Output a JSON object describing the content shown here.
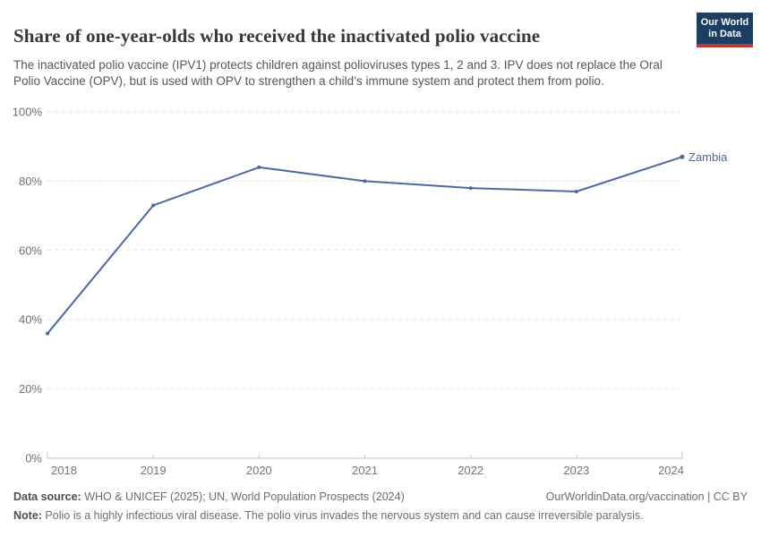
{
  "brand": {
    "logo_line1": "Our World",
    "logo_line2": "in Data",
    "bg_color": "#1d3d63",
    "accent_color": "#b93a32"
  },
  "header": {
    "title": "Share of one-year-olds who received the inactivated polio vaccine",
    "subtitle": "The inactivated polio vaccine (IPV1) protects children against polioviruses types 1, 2 and 3. IPV does not replace the Oral Polio Vaccine (OPV), but is used with OPV to strengthen a child’s immune system and protect them from polio."
  },
  "chart_data": {
    "type": "line",
    "title": "Share of one-year-olds who received the inactivated polio vaccine",
    "x": [
      2018,
      2019,
      2020,
      2021,
      2022,
      2023,
      2024
    ],
    "series": [
      {
        "name": "Zambia",
        "color": "#4C6A9C",
        "values": [
          36,
          73,
          84,
          80,
          78,
          77,
          87
        ]
      }
    ],
    "ylim": [
      0,
      100
    ],
    "yticks": [
      0,
      20,
      40,
      60,
      80,
      100
    ],
    "ytick_suffix": "%",
    "xlabel": "",
    "ylabel": "",
    "grid": "horizontal-dashed",
    "legend_position": "end-of-line"
  },
  "footer": {
    "data_source_label": "Data source:",
    "data_source_text": " WHO & UNICEF (2025); UN, World Population Prospects (2024)",
    "license_text": "OurWorldinData.org/vaccination | CC BY",
    "note_label": "Note:",
    "note_text": " Polio is a highly infectious viral disease. The polio virus invades the nervous system and can cause irreversible paralysis."
  }
}
